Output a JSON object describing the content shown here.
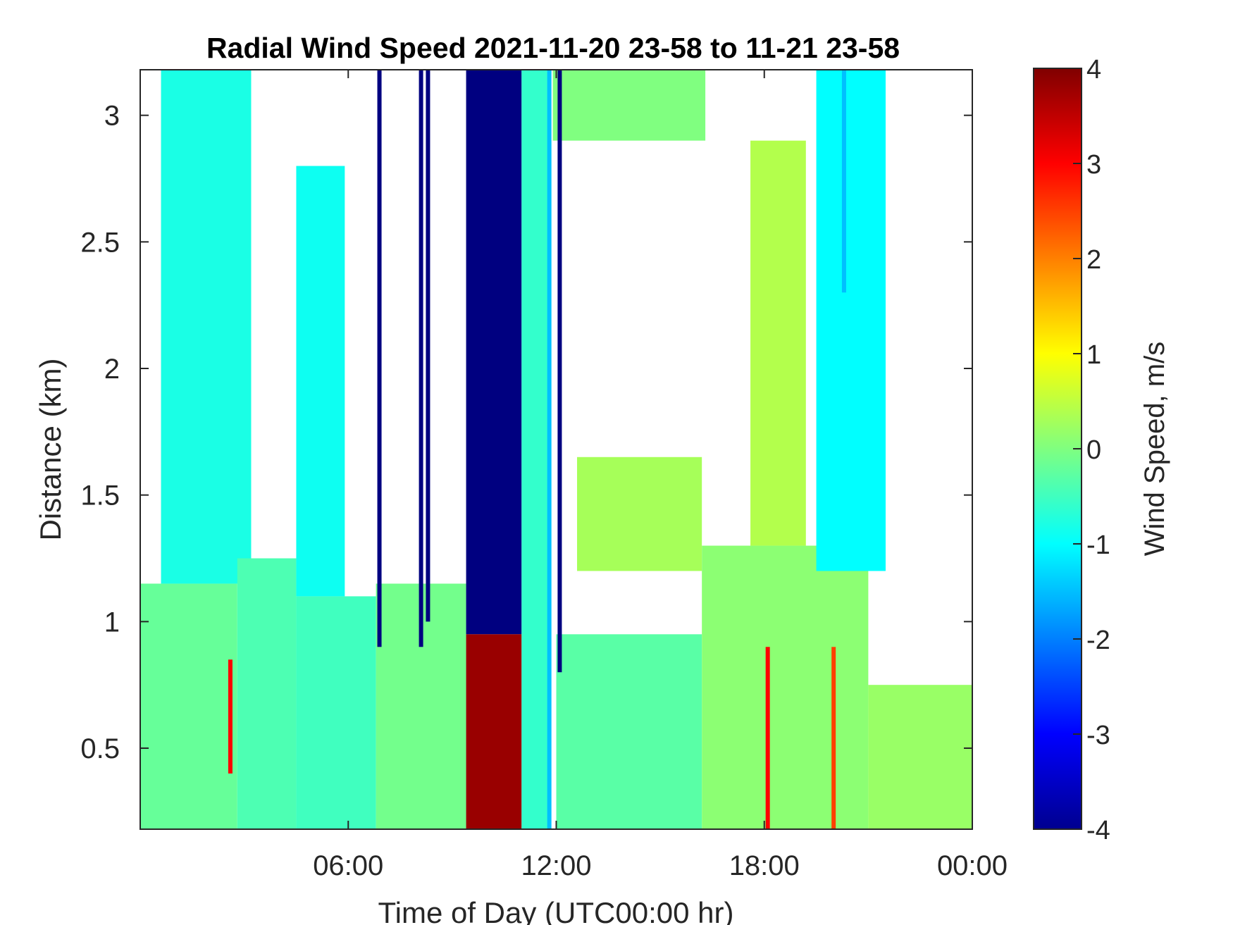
{
  "chart_data": {
    "type": "heatmap",
    "title": "Radial Wind Speed 2021-11-20 23-58 to 11-21 23-58",
    "xlabel": "Time of Day (UTC00:00 hr)",
    "ylabel": "Distance (km)",
    "xlim": [
      0,
      24
    ],
    "ylim": [
      0.18,
      3.18
    ],
    "x_ticks": [
      {
        "value": 6,
        "label": "06:00"
      },
      {
        "value": 12,
        "label": "12:00"
      },
      {
        "value": 18,
        "label": "18:00"
      },
      {
        "value": 24,
        "label": "00:00"
      }
    ],
    "y_ticks": [
      {
        "value": 0.5,
        "label": "0.5"
      },
      {
        "value": 1,
        "label": "1"
      },
      {
        "value": 1.5,
        "label": "1.5"
      },
      {
        "value": 2,
        "label": "2"
      },
      {
        "value": 2.5,
        "label": "2.5"
      },
      {
        "value": 3,
        "label": "3"
      }
    ],
    "colorbar": {
      "label": "Wind Speed, m/s",
      "colormap": "jet",
      "clim": [
        -4,
        4
      ],
      "ticks": [
        {
          "value": 4,
          "label": "4"
        },
        {
          "value": 3,
          "label": "3"
        },
        {
          "value": 2,
          "label": "2"
        },
        {
          "value": 1,
          "label": "1"
        },
        {
          "value": 0,
          "label": "0"
        },
        {
          "value": -1,
          "label": "-1"
        },
        {
          "value": -2,
          "label": "-2"
        },
        {
          "value": -3,
          "label": "-3"
        },
        {
          "value": -4,
          "label": "-4"
        }
      ]
    },
    "regions": [
      {
        "x": [
          0,
          2.8
        ],
        "y": [
          0.18,
          1.15
        ],
        "speed": -0.2
      },
      {
        "x": [
          0.6,
          3.2
        ],
        "y": [
          1.15,
          3.18
        ],
        "speed": -0.8
      },
      {
        "x": [
          2.8,
          4.5
        ],
        "y": [
          0.18,
          1.25
        ],
        "speed": -0.4
      },
      {
        "x": [
          4.5,
          6.8
        ],
        "y": [
          0.18,
          1.1
        ],
        "speed": -0.5
      },
      {
        "x": [
          4.5,
          5.9
        ],
        "y": [
          1.1,
          2.8
        ],
        "speed": -0.9
      },
      {
        "x": [
          6.8,
          9.4
        ],
        "y": [
          0.18,
          1.15
        ],
        "speed": -0.1
      },
      {
        "x": [
          9.4,
          11.0
        ],
        "y": [
          0.95,
          3.18
        ],
        "speed": -4.0
      },
      {
        "x": [
          9.4,
          11.0
        ],
        "y": [
          0.18,
          0.95
        ],
        "speed": 3.8
      },
      {
        "x": [
          11.0,
          11.8
        ],
        "y": [
          0.18,
          3.18
        ],
        "speed": -0.6
      },
      {
        "x": [
          11.9,
          16.3
        ],
        "y": [
          2.9,
          3.18
        ],
        "speed": 0.0
      },
      {
        "x": [
          12.6,
          16.2
        ],
        "y": [
          1.2,
          1.65
        ],
        "speed": 0.3
      },
      {
        "x": [
          12.0,
          16.2
        ],
        "y": [
          0.18,
          0.95
        ],
        "speed": -0.3
      },
      {
        "x": [
          16.2,
          21.0
        ],
        "y": [
          0.18,
          1.3
        ],
        "speed": 0.1
      },
      {
        "x": [
          17.6,
          19.2
        ],
        "y": [
          1.3,
          2.9
        ],
        "speed": 0.4
      },
      {
        "x": [
          21.0,
          24.0
        ],
        "y": [
          0.18,
          0.75
        ],
        "speed": 0.2
      },
      {
        "x": [
          19.5,
          21.5
        ],
        "y": [
          1.2,
          3.18
        ],
        "speed": -1.0
      }
    ],
    "streaks": [
      {
        "x": 6.9,
        "y": [
          0.9,
          3.18
        ],
        "speed": -4.0
      },
      {
        "x": 8.1,
        "y": [
          0.9,
          3.18
        ],
        "speed": -4.0
      },
      {
        "x": 8.3,
        "y": [
          1.0,
          3.18
        ],
        "speed": -4.0
      },
      {
        "x": 12.1,
        "y": [
          0.8,
          3.18
        ],
        "speed": -4.0
      },
      {
        "x": 11.8,
        "y": [
          0.18,
          3.18
        ],
        "speed": -1.5
      },
      {
        "x": 18.1,
        "y": [
          0.18,
          0.9
        ],
        "speed": 3.0
      },
      {
        "x": 20.0,
        "y": [
          0.18,
          0.9
        ],
        "speed": 2.5
      },
      {
        "x": 2.6,
        "y": [
          0.4,
          0.85
        ],
        "speed": 3.0
      },
      {
        "x": 20.3,
        "y": [
          2.3,
          3.18
        ],
        "speed": -1.5
      }
    ]
  }
}
